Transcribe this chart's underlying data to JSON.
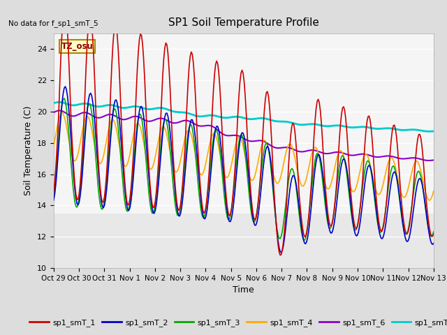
{
  "title": "SP1 Soil Temperature Profile",
  "xlabel": "Time",
  "ylabel": "Soil Temperature (C)",
  "no_data_text": "No data for f_sp1_smT_5",
  "tz_label": "TZ_osu",
  "ylim": [
    10,
    25
  ],
  "xlim": [
    0,
    15
  ],
  "background_color": "#dddddd",
  "plot_bg_color": "#e8e8e8",
  "plot_bg_upper_color": "#f5f5f5",
  "x_tick_labels": [
    "Oct 29",
    "Oct 30",
    "Oct 31",
    "Nov 1",
    "Nov 2",
    "Nov 3",
    "Nov 4",
    "Nov 5",
    "Nov 6",
    "Nov 7",
    "Nov 8",
    "Nov 9",
    "Nov 10",
    "Nov 11",
    "Nov 12",
    "Nov 13"
  ],
  "y_ticks": [
    10,
    12,
    14,
    16,
    18,
    20,
    22,
    24
  ],
  "series": {
    "sp1_smT_1": {
      "color": "#cc0000",
      "lw": 1.2
    },
    "sp1_smT_2": {
      "color": "#0000cc",
      "lw": 1.2
    },
    "sp1_smT_3": {
      "color": "#00aa00",
      "lw": 1.2
    },
    "sp1_smT_4": {
      "color": "#ffaa00",
      "lw": 1.2
    },
    "sp1_smT_6": {
      "color": "#8800cc",
      "lw": 1.5
    },
    "sp1_smT_7": {
      "color": "#00cccc",
      "lw": 2.0
    }
  },
  "figsize": [
    6.4,
    4.8
  ],
  "dpi": 100
}
